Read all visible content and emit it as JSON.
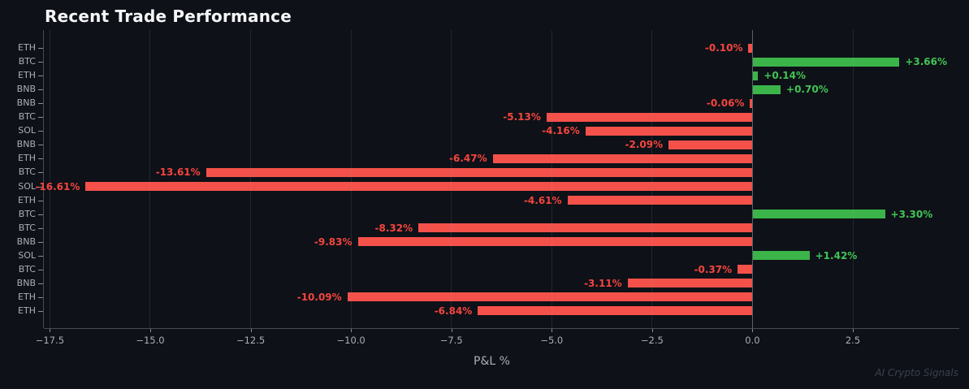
{
  "title": "Recent Trade Performance",
  "watermark": "AI Crypto Signals",
  "chart_data": {
    "type": "bar",
    "orientation": "horizontal",
    "title": "Recent Trade Performance",
    "xlabel": "P&L %",
    "ylabel": "",
    "categories": [
      "ETH",
      "BTC",
      "ETH",
      "BNB",
      "BNB",
      "BTC",
      "SOL",
      "BNB",
      "ETH",
      "BTC",
      "SOL",
      "ETH",
      "BTC",
      "BTC",
      "BNB",
      "SOL",
      "BTC",
      "BNB",
      "ETH",
      "ETH"
    ],
    "values": [
      -0.1,
      3.66,
      0.14,
      0.7,
      -0.06,
      -5.13,
      -4.16,
      -2.09,
      -6.47,
      -13.61,
      -16.61,
      -4.61,
      3.3,
      -8.32,
      -9.83,
      1.42,
      -0.37,
      -3.11,
      -10.09,
      -6.84
    ],
    "value_labels": [
      "-0.10%",
      "+3.66%",
      "+0.14%",
      "+0.70%",
      "-0.06%",
      "-5.13%",
      "-4.16%",
      "-2.09%",
      "-6.47%",
      "-13.61%",
      "-16.61%",
      "-4.61%",
      "+3.30%",
      "-8.32%",
      "-9.83%",
      "+1.42%",
      "-0.37%",
      "-3.11%",
      "-10.09%",
      "-6.84%"
    ],
    "xlim": [
      -17.65,
      5.15
    ],
    "xticks": [
      -17.5,
      -15.0,
      -12.5,
      -10.0,
      -7.5,
      -5.0,
      -2.5,
      0.0,
      2.5
    ],
    "xtick_labels": [
      "−17.5",
      "−15.0",
      "−12.5",
      "−10.0",
      "−7.5",
      "−5.0",
      "−2.5",
      "0.0",
      "2.5"
    ],
    "grid": true,
    "legend": false,
    "colors": {
      "background": "#0e1117",
      "positive": "#3bb54a",
      "negative": "#f4514a",
      "positive_label": "#41c455",
      "negative_label": "#f4453f",
      "tick_label": "#aab0b6",
      "axis_label": "#aab0b8",
      "title": "#f5f6f7",
      "gridline": "rgba(140,150,165,0.16)",
      "zero_line": "#5a6069",
      "spine": "#454a52",
      "tick_mark": "#8b9096",
      "watermark": "#3a414d"
    }
  }
}
